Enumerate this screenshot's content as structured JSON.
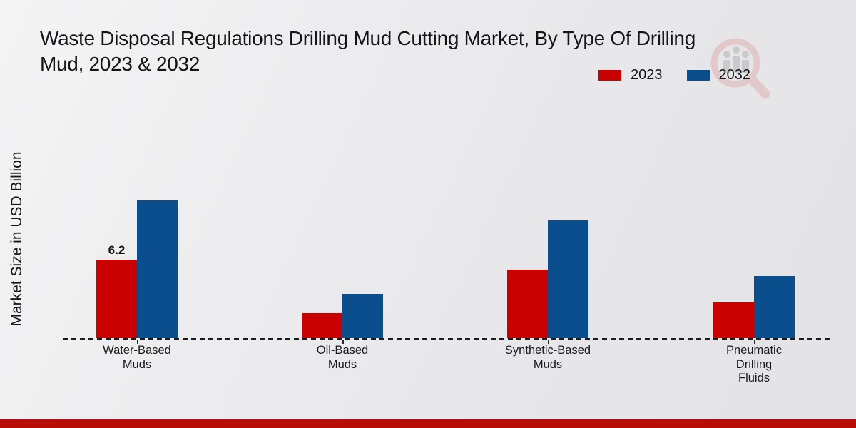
{
  "header": {
    "title": "Waste Disposal Regulations Drilling Mud Cutting Market, By Type Of Drilling\nMud, 2023 & 2032"
  },
  "legend": {
    "items": [
      {
        "label": "2023",
        "color": "#c90201"
      },
      {
        "label": "2032",
        "color": "#0b4e8e"
      }
    ]
  },
  "chart_data": {
    "type": "bar",
    "title": "Waste Disposal Regulations Drilling Mud Cutting Market, By Type Of Drilling Mud, 2023 & 2032",
    "ylabel": "Market Size in USD Billion",
    "xlabel": "",
    "categories": [
      "Water-Based\nMuds",
      "Oil-Based\nMuds",
      "Synthetic-Based\nMuds",
      "Pneumatic\nDrilling\nFluids"
    ],
    "series": [
      {
        "name": "2023",
        "color": "#c90201",
        "values": [
          6.2,
          2.0,
          5.4,
          2.8
        ]
      },
      {
        "name": "2032",
        "color": "#0b4e8e",
        "values": [
          10.9,
          3.5,
          9.3,
          4.9
        ]
      }
    ],
    "annotations": [
      {
        "series": "2023",
        "category_index": 0,
        "text": "6.2"
      }
    ],
    "ylim": [
      0,
      11.5
    ],
    "grid": false,
    "legend_position": "top-right",
    "baseline_style": "dashed"
  },
  "colors": {
    "series_2023": "#c90201",
    "series_2032": "#0b4e8e",
    "footer_accent": "#b80c06",
    "background": "#e9e9eb",
    "text": "#141414"
  },
  "footer": {}
}
